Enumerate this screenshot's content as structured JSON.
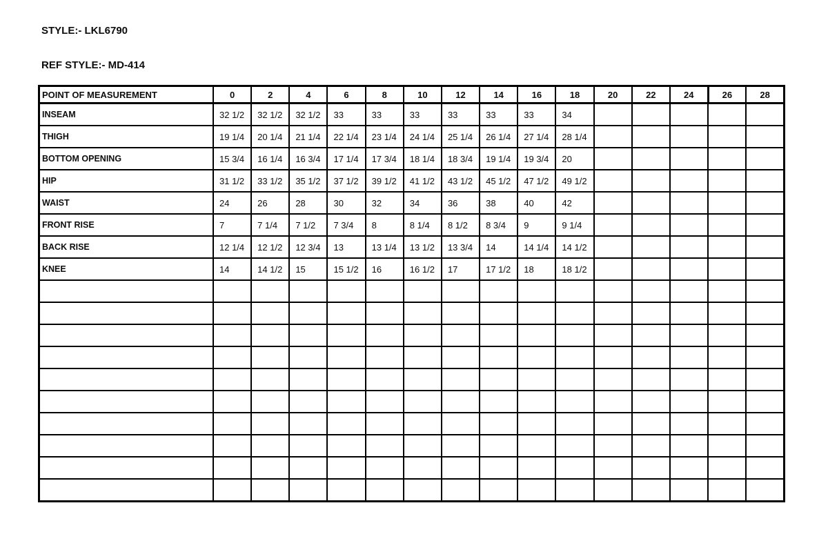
{
  "header": {
    "style": "STYLE:- LKL6790",
    "ref_style": "REF STYLE:- MD-414"
  },
  "table": {
    "header": [
      "POINT OF MEASUREMENT",
      "0",
      "2",
      "4",
      "6",
      "8",
      "10",
      "12",
      "14",
      "16",
      "18",
      "20",
      "22",
      "24",
      "26",
      "28"
    ],
    "divider_before_index": 14,
    "rows": [
      {
        "label": "INSEAM",
        "values": [
          "32 1/2",
          "32 1/2",
          "32 1/2",
          "33",
          "33",
          "33",
          "33",
          "33",
          "33",
          "34",
          "",
          "",
          "",
          "",
          ""
        ]
      },
      {
        "label": "THIGH",
        "values": [
          "19 1/4",
          "20 1/4",
          "21 1/4",
          "22 1/4",
          "23 1/4",
          "24 1/4",
          "25 1/4",
          "26 1/4",
          "27 1/4",
          "28 1/4",
          "",
          "",
          "",
          "",
          ""
        ]
      },
      {
        "label": "BOTTOM OPENING",
        "values": [
          "15 3/4",
          "16 1/4",
          "16 3/4",
          "17 1/4",
          "17 3/4",
          "18 1/4",
          "18 3/4",
          "19 1/4",
          "19 3/4",
          "20",
          "",
          "",
          "",
          "",
          ""
        ]
      },
      {
        "label": "HIP",
        "values": [
          "31 1/2",
          "33 1/2",
          "35 1/2",
          "37 1/2",
          "39 1/2",
          "41 1/2",
          "43 1/2",
          "45 1/2",
          "47 1/2",
          "49 1/2",
          "",
          "",
          "",
          "",
          ""
        ]
      },
      {
        "label": "WAIST",
        "values": [
          "24",
          "26",
          "28",
          "30",
          "32",
          "34",
          "36",
          "38",
          "40",
          "42",
          "",
          "",
          "",
          "",
          ""
        ]
      },
      {
        "label": "FRONT RISE",
        "values": [
          "7",
          "7 1/4",
          "7 1/2",
          "7 3/4",
          "8",
          "8 1/4",
          "8 1/2",
          "8 3/4",
          "9",
          "9 1/4",
          "",
          "",
          "",
          "",
          ""
        ]
      },
      {
        "label": "BACK RISE",
        "values": [
          "12 1/4",
          "12 1/2",
          "12 3/4",
          "13",
          "13 1/4",
          "13 1/2",
          "13 3/4",
          "14",
          "14 1/4",
          "14 1/2",
          "",
          "",
          "",
          "",
          ""
        ]
      },
      {
        "label": "KNEE",
        "values": [
          "14",
          "14 1/2",
          "15",
          "15 1/2",
          "16",
          "16 1/2",
          "17",
          "17 1/2",
          "18",
          "18 1/2",
          "",
          "",
          "",
          "",
          ""
        ]
      }
    ],
    "empty_rows": 10,
    "colors": {
      "text": "#0d0d0d",
      "border": "#000000",
      "background": "#ffffff"
    }
  }
}
